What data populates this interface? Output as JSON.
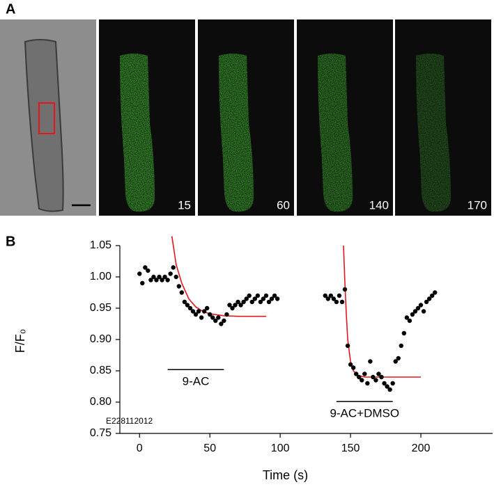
{
  "panels": {
    "a_label": "A",
    "b_label": "B"
  },
  "images": {
    "timestamps": [
      "15",
      "60",
      "140",
      "170"
    ]
  },
  "chart_data": {
    "type": "scatter",
    "x_label": "Time (s)",
    "y_label": "F/F₀",
    "code_label": "E228112012",
    "xlim": [
      -14,
      251
    ],
    "ylim": [
      0.75,
      1.05
    ],
    "xticks": [
      0,
      50,
      100,
      150,
      200
    ],
    "yticks": [
      0.75,
      {
        "value": 0.8,
        "label": "0.80"
      },
      0.85,
      {
        "value": 0.9,
        "label": "0.90"
      },
      0.95,
      {
        "value": 1.0,
        "label": "1.00"
      },
      1.05
    ],
    "series": [
      {
        "color": "#000000",
        "x": [
          0,
          2,
          4,
          6,
          8,
          10,
          12,
          14,
          16,
          18,
          20,
          22,
          24,
          26,
          28,
          30,
          32,
          34,
          36,
          38,
          40,
          42,
          44,
          46,
          48,
          50,
          52,
          54,
          56,
          58,
          60,
          62,
          64,
          66,
          68,
          70,
          72,
          74,
          76,
          78,
          80,
          82,
          84,
          86,
          88,
          90,
          92,
          94,
          96,
          98,
          132,
          134,
          136,
          138,
          140,
          142,
          144,
          146,
          148,
          150,
          152,
          154,
          156,
          158,
          160,
          162,
          164,
          166,
          168,
          170,
          172,
          174,
          176,
          178,
          180,
          182,
          184,
          186,
          188,
          190,
          192,
          194,
          196,
          198,
          200,
          202,
          204,
          206,
          208,
          210
        ],
        "values": [
          1.005,
          0.99,
          1.015,
          1.01,
          0.995,
          1.0,
          0.995,
          1.0,
          0.995,
          1.0,
          0.995,
          1.005,
          1.015,
          1.0,
          0.985,
          0.975,
          0.96,
          0.955,
          0.95,
          0.945,
          0.94,
          0.945,
          0.935,
          0.945,
          0.95,
          0.94,
          0.935,
          0.93,
          0.935,
          0.925,
          0.93,
          0.94,
          0.955,
          0.95,
          0.955,
          0.96,
          0.955,
          0.96,
          0.965,
          0.97,
          0.96,
          0.965,
          0.97,
          0.96,
          0.965,
          0.97,
          0.96,
          0.965,
          0.97,
          0.965,
          0.97,
          0.965,
          0.97,
          0.965,
          0.96,
          0.97,
          0.96,
          0.98,
          0.89,
          0.86,
          0.855,
          0.845,
          0.84,
          0.835,
          0.845,
          0.83,
          0.865,
          0.84,
          0.835,
          0.845,
          0.84,
          0.83,
          0.825,
          0.82,
          0.83,
          0.865,
          0.87,
          0.89,
          0.91,
          0.935,
          0.93,
          0.94,
          0.945,
          0.95,
          0.955,
          0.945,
          0.96,
          0.965,
          0.97,
          0.975
        ]
      }
    ],
    "fits": [
      {
        "color": "#e8141c",
        "x": [
          23,
          26,
          30,
          35,
          40,
          45,
          50,
          60,
          70,
          90
        ],
        "values": [
          1.065,
          1.02,
          0.99,
          0.965,
          0.952,
          0.945,
          0.941,
          0.938,
          0.937,
          0.937
        ]
      },
      {
        "color": "#e8141c",
        "x": [
          145,
          146,
          147,
          148,
          150,
          152,
          155,
          160,
          180,
          200
        ],
        "values": [
          1.05,
          0.99,
          0.94,
          0.9,
          0.865,
          0.85,
          0.843,
          0.84,
          0.84,
          0.84
        ]
      }
    ],
    "annotations": [
      {
        "text": "9-AC",
        "x": [
          20,
          60
        ],
        "y": 0.852
      },
      {
        "text": "9-AC+DMSO",
        "x": [
          140,
          180
        ],
        "y": 0.801
      }
    ]
  }
}
